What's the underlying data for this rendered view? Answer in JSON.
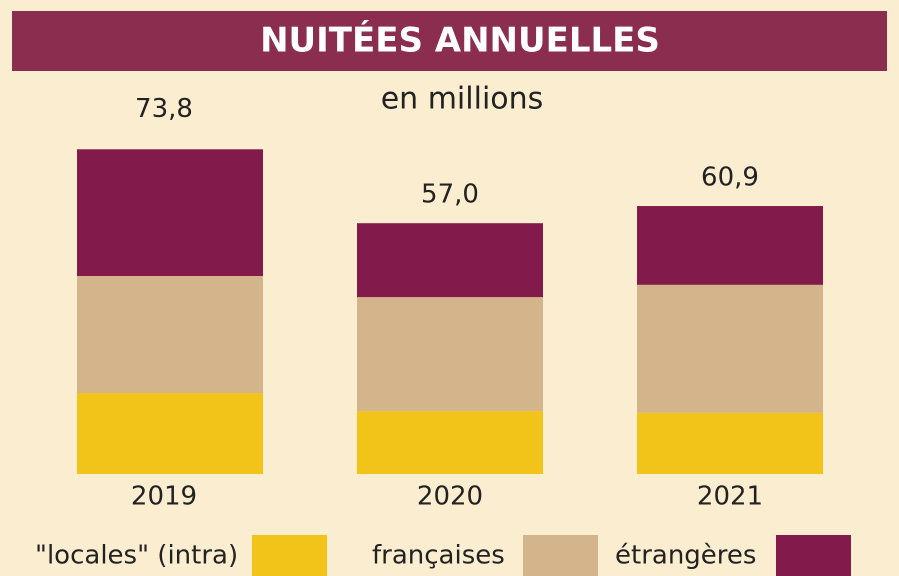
{
  "chart_data": {
    "type": "stacked_bar",
    "title": "NUITÉES ANNUELLES",
    "subtitle": "en millions",
    "categories": [
      "2019",
      "2020",
      "2021"
    ],
    "series": [
      {
        "name": "\"locales\" (intra)",
        "color": "#f2c318",
        "values": [
          18.4,
          14.3,
          13.9
        ]
      },
      {
        "name": "françaises",
        "color": "#d4b48a",
        "values": [
          26.6,
          25.9,
          29.1
        ]
      },
      {
        "name": "étrangères",
        "color": "#821a4b",
        "values": [
          28.8,
          16.8,
          17.9
        ]
      }
    ],
    "totals": [
      73.8,
      57.0,
      60.9
    ],
    "total_labels": [
      "73,8",
      "57,0",
      "60,9"
    ],
    "ylim": [
      0,
      80
    ]
  }
}
